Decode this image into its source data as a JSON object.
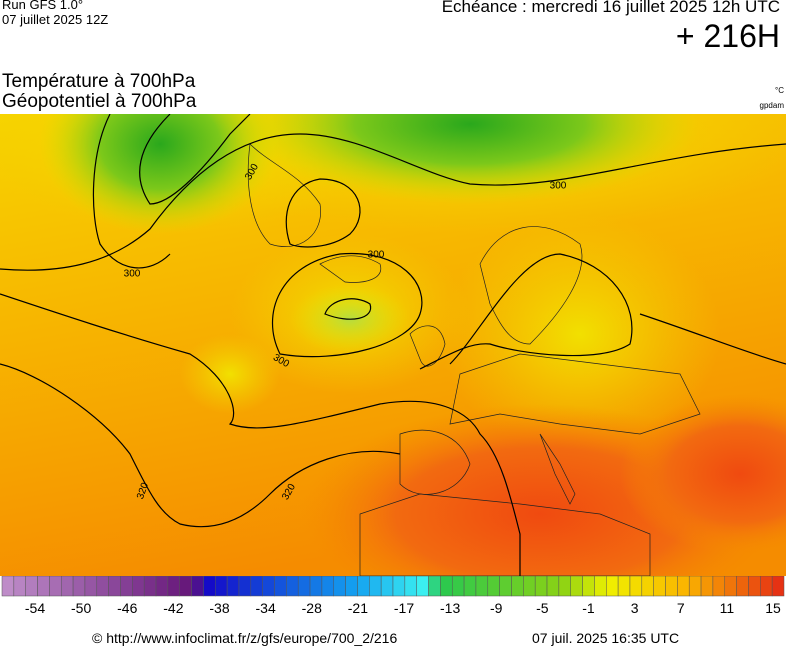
{
  "header": {
    "run": "Run GFS 1.0°",
    "run_date": "07 juillet 2025 12Z",
    "valid": "Echéance : mercredi 16 juillet 2025 12h UTC",
    "lead": "+ 216H"
  },
  "title": {
    "line1": "Température à 700hPa",
    "line2": "Géopotentiel à 700hPa",
    "unit_temp": "°C",
    "unit_geo": "gpdam"
  },
  "map": {
    "contour_labels": [
      "300",
      "300",
      "300",
      "300",
      "300",
      "320",
      "320"
    ]
  },
  "colorbar": {
    "labels": [
      "-54",
      "-50",
      "-46",
      "-42",
      "-38",
      "-34",
      "-28",
      "-21",
      "-17",
      "-13",
      "-9",
      "-5",
      "-1",
      "3",
      "7",
      "11",
      "15"
    ]
  },
  "footer": {
    "source": "© http://www.infoclimat.fr/z/gfs/europe/700_2/216",
    "generated": "07 juil. 2025 16:35 UTC"
  }
}
